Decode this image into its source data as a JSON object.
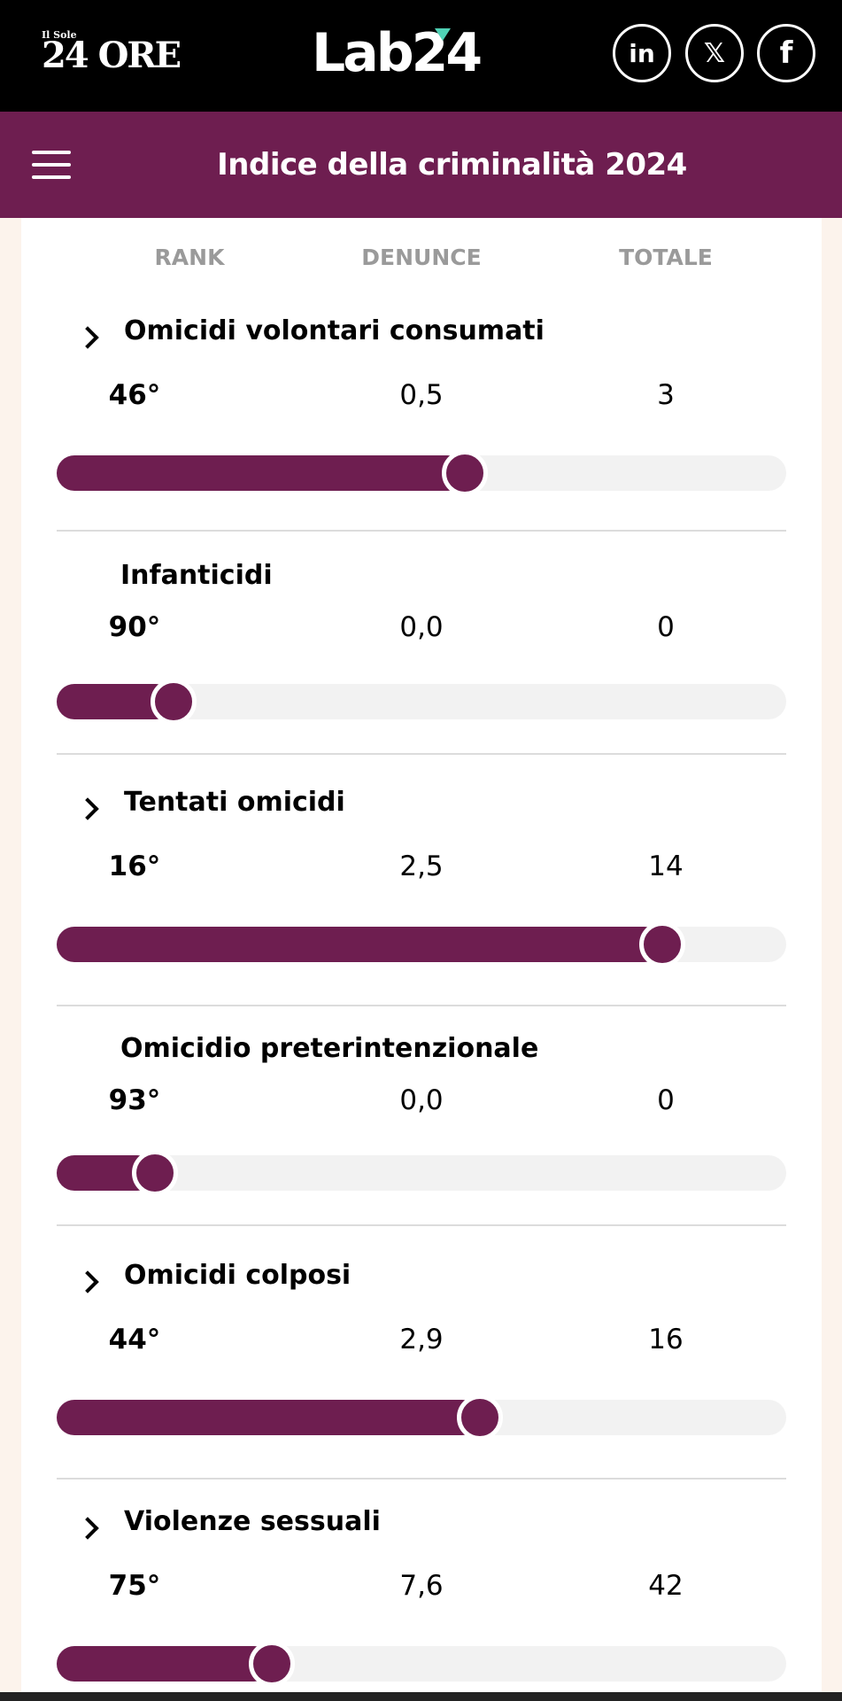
{
  "brand": {
    "sole_small": "Il Sole",
    "sole_big": "24 ORE",
    "lab": "Lab24"
  },
  "social": {
    "linkedin": "in",
    "x": "𝕏",
    "facebook": "f"
  },
  "header": {
    "title": "Indice della criminalità 2024"
  },
  "columns": {
    "rank": "RANK",
    "denunce": "DENUNCE",
    "totale": "TOTALE"
  },
  "rows": [
    {
      "name": "Omicidi volontari consumati",
      "expandable": true,
      "rank": "46°",
      "denunce": "0,5",
      "totale": "3",
      "level": 0.56
    },
    {
      "name": "Infanticidi",
      "expandable": false,
      "rank": "90°",
      "denunce": "0,0",
      "totale": "0",
      "level": 0.16
    },
    {
      "name": "Tentati omicidi",
      "expandable": true,
      "rank": "16°",
      "denunce": "2,5",
      "totale": "14",
      "level": 0.83
    },
    {
      "name": "Omicidio preterintenzionale",
      "expandable": false,
      "rank": "93°",
      "denunce": "0,0",
      "totale": "0",
      "level": 0.135
    },
    {
      "name": "Omicidi colposi",
      "expandable": true,
      "rank": "44°",
      "denunce": "2,9",
      "totale": "16",
      "level": 0.58
    },
    {
      "name": "Violenze sessuali",
      "expandable": true,
      "rank": "75°",
      "denunce": "7,6",
      "totale": "42",
      "level": 0.295
    }
  ],
  "colors": {
    "accent": "#6e1e50",
    "track": "#f2f2f2",
    "page_bg": "#fcf3ec"
  }
}
